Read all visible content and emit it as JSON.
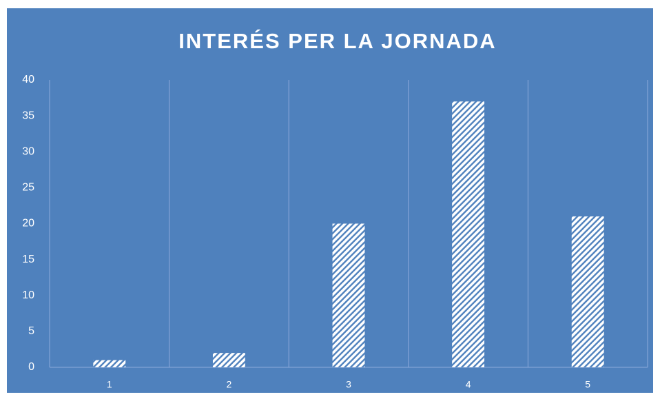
{
  "chart_data": {
    "type": "bar",
    "title": "INTERÉS PER LA JORNADA",
    "categories": [
      "1",
      "2",
      "3",
      "4",
      "5"
    ],
    "values": [
      1,
      2,
      20,
      37,
      21
    ],
    "color": "#ffffff",
    "background": "#4f81bd",
    "ylim": [
      0,
      40
    ],
    "yticks": [
      0,
      5,
      10,
      15,
      20,
      25,
      30,
      35,
      40
    ],
    "grid": false
  }
}
